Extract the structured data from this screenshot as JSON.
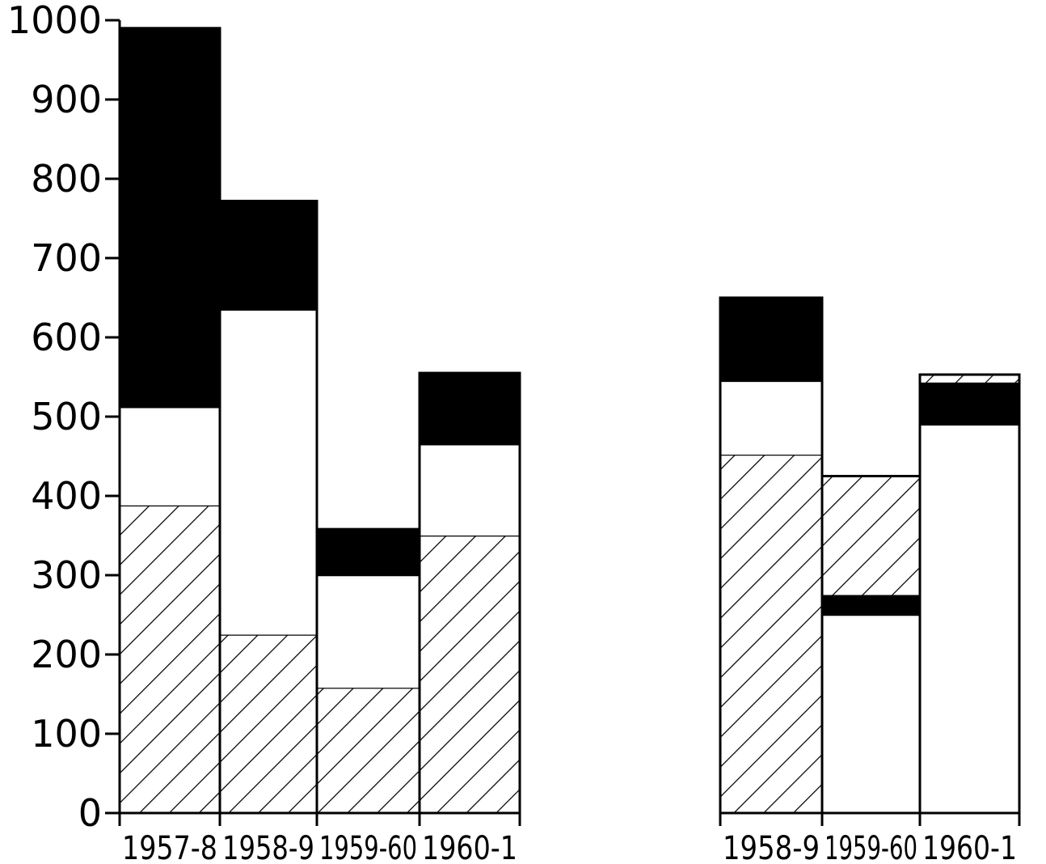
{
  "chart_data": {
    "type": "bar",
    "stacked": true,
    "title": "",
    "xlabel": "",
    "ylabel": "",
    "ylim": [
      0,
      1000
    ],
    "yticks": [
      "0",
      "100",
      "200",
      "300",
      "400",
      "500",
      "600",
      "700",
      "800",
      "900",
      "1000"
    ],
    "grid": false,
    "colors": {
      "solid": "#000000",
      "hatched_line": "#000000",
      "blank": "#ffffff",
      "outline": "#000000"
    },
    "groups": [
      {
        "categories": [
          "1957-8",
          "1958-9",
          "1959-60",
          "1960-1"
        ],
        "bars": [
          {
            "segments": [
              {
                "fill": "hatched",
                "from": 0,
                "to": 388
              },
              {
                "fill": "blank",
                "from": 388,
                "to": 512
              },
              {
                "fill": "solid",
                "from": 512,
                "to": 990
              }
            ]
          },
          {
            "segments": [
              {
                "fill": "hatched",
                "from": 0,
                "to": 225
              },
              {
                "fill": "blank",
                "from": 225,
                "to": 635
              },
              {
                "fill": "solid",
                "from": 635,
                "to": 772
              }
            ]
          },
          {
            "segments": [
              {
                "fill": "hatched",
                "from": 0,
                "to": 158
              },
              {
                "fill": "blank",
                "from": 158,
                "to": 300
              },
              {
                "fill": "solid",
                "from": 300,
                "to": 358
              }
            ]
          },
          {
            "segments": [
              {
                "fill": "hatched",
                "from": 0,
                "to": 350
              },
              {
                "fill": "blank",
                "from": 350,
                "to": 465
              },
              {
                "fill": "solid",
                "from": 465,
                "to": 555
              }
            ]
          }
        ]
      },
      {
        "categories": [
          "1958-9",
          "1959-60",
          "1960-1"
        ],
        "bars": [
          {
            "segments": [
              {
                "fill": "hatched",
                "from": 0,
                "to": 452
              },
              {
                "fill": "blank",
                "from": 452,
                "to": 545
              },
              {
                "fill": "solid",
                "from": 545,
                "to": 650
              }
            ]
          },
          {
            "segments": [
              {
                "fill": "blank",
                "from": 0,
                "to": 250
              },
              {
                "fill": "solid",
                "from": 250,
                "to": 275
              },
              {
                "fill": "hatched",
                "from": 275,
                "to": 425
              }
            ]
          },
          {
            "segments": [
              {
                "fill": "blank",
                "from": 0,
                "to": 490
              },
              {
                "fill": "solid",
                "from": 490,
                "to": 543
              },
              {
                "fill": "hatched",
                "from": 543,
                "to": 553
              }
            ]
          }
        ]
      }
    ]
  }
}
